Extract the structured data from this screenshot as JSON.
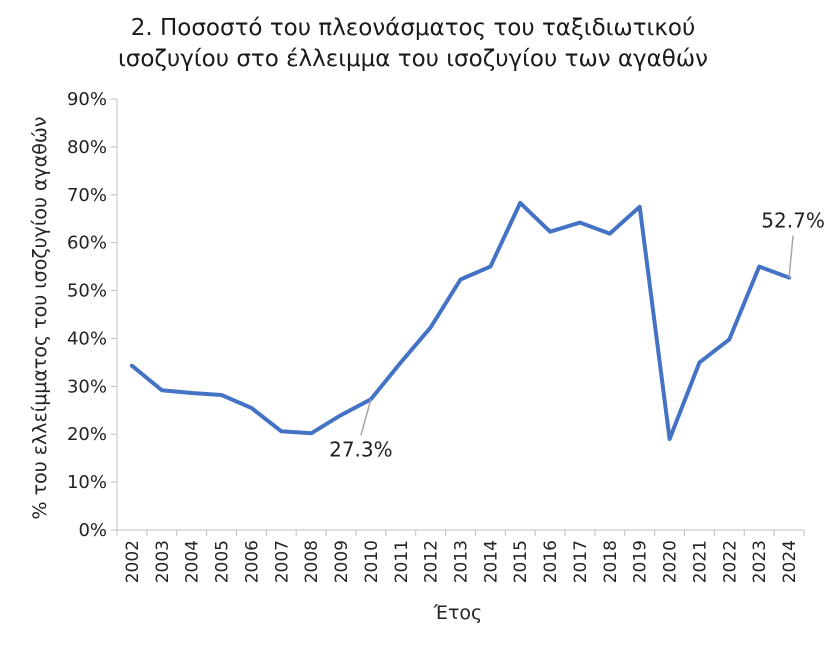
{
  "chart_data": {
    "type": "line",
    "title_lines": [
      "2. Ποσοστό του πλεονάσματος του ταξιδιωτικού",
      "ισοζυγίου στο έλλειμμα του ισοζυγίου των αγαθών"
    ],
    "xlabel": "Έτος",
    "ylabel": "% του ελλείμματος του ισοζυγίου αγαθών",
    "ylim": [
      0,
      90
    ],
    "y_ticks": [
      "0%",
      "10%",
      "20%",
      "30%",
      "40%",
      "50%",
      "60%",
      "70%",
      "80%",
      "90%"
    ],
    "y_tick_values": [
      0,
      10,
      20,
      30,
      40,
      50,
      60,
      70,
      80,
      90
    ],
    "categories": [
      "2002",
      "2003",
      "2004",
      "2005",
      "2006",
      "2007",
      "2008",
      "2009",
      "2010",
      "2011",
      "2012",
      "2013",
      "2014",
      "2015",
      "2016",
      "2017",
      "2018",
      "2019",
      "2020",
      "2021",
      "2022",
      "2023",
      "2024"
    ],
    "series": [
      {
        "values": [
          34.3,
          29.2,
          28.6,
          28.2,
          25.5,
          20.6,
          20.2,
          24.0,
          27.3,
          35.0,
          42.3,
          52.3,
          55.0,
          68.3,
          62.3,
          64.2,
          61.9,
          67.5,
          19.0,
          35.0,
          39.8,
          55.0,
          52.7
        ],
        "color": "#4472c4"
      }
    ],
    "annotations": [
      {
        "index": 8,
        "label": "27.3%"
      },
      {
        "index": 22,
        "label": "52.7%"
      }
    ],
    "grid": false,
    "legend": "none"
  }
}
